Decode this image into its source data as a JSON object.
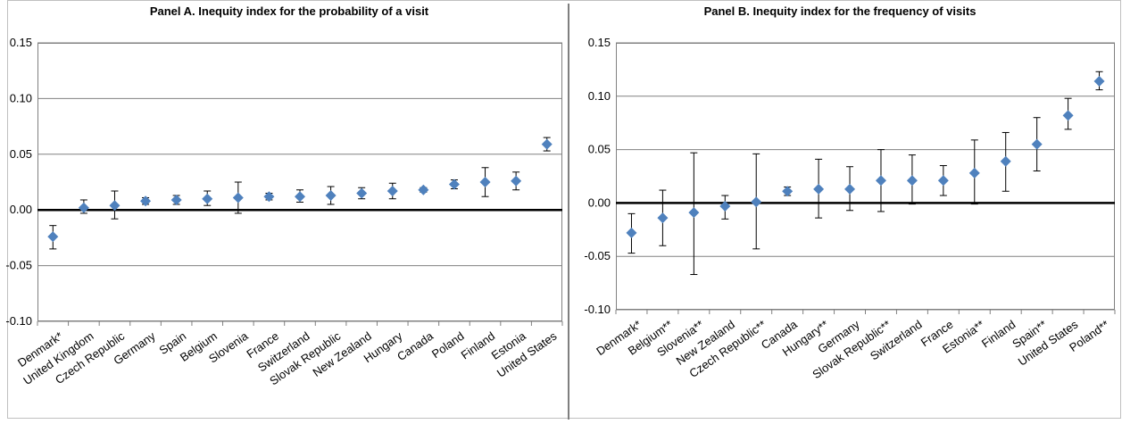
{
  "chart_data": [
    {
      "type": "scatter",
      "title": "Panel A. Inequity index for the probability of a visit",
      "ylim": [
        -0.1,
        0.15
      ],
      "yticks": [
        "0.15",
        "0.10",
        "0.05",
        "0.00",
        "-0.05",
        "-0.10"
      ],
      "ytick_values": [
        0.15,
        0.1,
        0.05,
        0.0,
        -0.05,
        -0.1
      ],
      "grid": true,
      "categories": [
        "Denmark*",
        "United Kingdom",
        "Czech Republic",
        "Germany",
        "Spain",
        "Belgium",
        "Slovenia",
        "France",
        "Switzerland",
        "Slovak Republic",
        "New Zealand",
        "Hungary",
        "Canada",
        "Poland",
        "Finland",
        "Estonia",
        "United States"
      ],
      "values": [
        -0.024,
        0.002,
        0.004,
        0.008,
        0.009,
        0.01,
        0.011,
        0.012,
        0.012,
        0.013,
        0.015,
        0.017,
        0.018,
        0.023,
        0.025,
        0.026,
        0.059
      ],
      "lower": [
        -0.035,
        -0.003,
        -0.008,
        0.005,
        0.005,
        0.004,
        -0.003,
        0.009,
        0.007,
        0.005,
        0.01,
        0.01,
        0.016,
        0.019,
        0.012,
        0.018,
        0.053
      ],
      "upper": [
        -0.014,
        0.009,
        0.017,
        0.011,
        0.013,
        0.017,
        0.025,
        0.015,
        0.018,
        0.021,
        0.02,
        0.024,
        0.02,
        0.027,
        0.038,
        0.034,
        0.065
      ],
      "marker_color": "#4f81bd"
    },
    {
      "type": "scatter",
      "title": "Panel B. Inequity index for the frequency of visits",
      "ylim": [
        -0.1,
        0.15
      ],
      "yticks": [
        "0.15",
        "0.10",
        "0.05",
        "0.00",
        "-0.05",
        "-0.10"
      ],
      "ytick_values": [
        0.15,
        0.1,
        0.05,
        0.0,
        -0.05,
        -0.1
      ],
      "grid": true,
      "categories": [
        "Denmark*",
        "Belgium**",
        "Slovenia**",
        "New Zealand",
        "Czech Republic**",
        "Canada",
        "Hungary**",
        "Germany",
        "Slovak Republic**",
        "Switzerland",
        "France",
        "Estonia**",
        "Finland",
        "Spain**",
        "United States",
        "Poland**"
      ],
      "values": [
        -0.028,
        -0.014,
        -0.009,
        -0.003,
        0.001,
        0.011,
        0.013,
        0.013,
        0.021,
        0.021,
        0.021,
        0.028,
        0.039,
        0.055,
        0.082,
        0.114
      ],
      "lower": [
        -0.047,
        -0.04,
        -0.067,
        -0.015,
        -0.043,
        0.007,
        -0.014,
        -0.007,
        -0.008,
        -0.001,
        0.007,
        -0.001,
        0.011,
        0.03,
        0.069,
        0.106
      ],
      "upper": [
        -0.01,
        0.012,
        0.047,
        0.007,
        0.046,
        0.015,
        0.041,
        0.034,
        0.05,
        0.045,
        0.035,
        0.059,
        0.066,
        0.08,
        0.098,
        0.123
      ],
      "marker_color": "#4f81bd"
    }
  ]
}
